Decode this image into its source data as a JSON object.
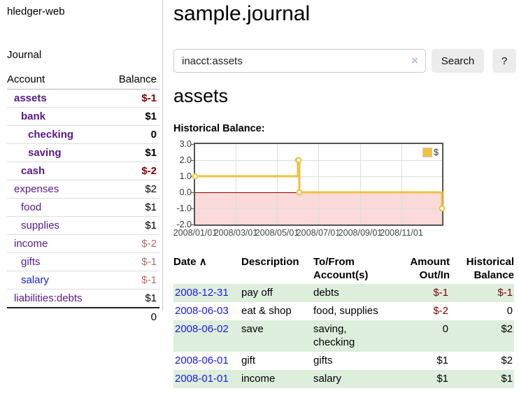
{
  "colors": {
    "link_purple": "#551a8b",
    "link_blue": "#1a1ae6",
    "negative": "#800000",
    "negative_muted": "#b36b6b",
    "row_stripe_green": "#ddeedd",
    "chart_line_gold": "#edc240",
    "chart_negative_fill": "#fbdada",
    "chart_zero_line": "#8b0000",
    "chart_border": "#545454"
  },
  "sidebar": {
    "brand": "hledger-web",
    "journal_label": "Journal",
    "accounts_table": {
      "headers": {
        "account": "Account",
        "balance": "Balance"
      },
      "rows": [
        {
          "account": "assets",
          "level": 1,
          "bold": true,
          "link": "purple",
          "balance": "$-1",
          "balance_style": "negative"
        },
        {
          "account": "bank",
          "level": 2,
          "bold": true,
          "link": "purple",
          "balance": "$1",
          "balance_style": "normal"
        },
        {
          "account": "checking",
          "level": 3,
          "bold": true,
          "link": "purple",
          "balance": "0",
          "balance_style": "normal"
        },
        {
          "account": "saving",
          "level": 3,
          "bold": true,
          "link": "purple",
          "balance": "$1",
          "balance_style": "normal"
        },
        {
          "account": "cash",
          "level": 2,
          "bold": true,
          "link": "purple",
          "balance": "$-2",
          "balance_style": "negative"
        },
        {
          "account": "expenses",
          "level": 1,
          "bold": false,
          "link": "purple",
          "balance": "$2",
          "balance_style": "normal"
        },
        {
          "account": "food",
          "level": 2,
          "bold": false,
          "link": "purple",
          "balance": "$1",
          "balance_style": "normal"
        },
        {
          "account": "supplies",
          "level": 2,
          "bold": false,
          "link": "purple",
          "balance": "$1",
          "balance_style": "normal"
        },
        {
          "account": "income",
          "level": 1,
          "bold": false,
          "link": "purple",
          "balance": "$-2",
          "balance_style": "negative_muted"
        },
        {
          "account": "gifts",
          "level": 2,
          "bold": false,
          "link": "purple",
          "balance": "$-1",
          "balance_style": "negative_muted"
        },
        {
          "account": "salary",
          "level": 2,
          "bold": false,
          "link": "blue",
          "balance": "$-1",
          "balance_style": "negative_muted"
        },
        {
          "account": "liabilities:debts",
          "level": 1,
          "bold": false,
          "link": "purple",
          "balance": "$1",
          "balance_style": "normal"
        }
      ],
      "total": "0"
    }
  },
  "main": {
    "title": "sample.journal",
    "search": {
      "value": "inacct:assets",
      "clear_icon": "×",
      "button_label": "Search",
      "help_label": "?"
    },
    "account_heading": "assets",
    "chart_label": "Historical Balance:"
  },
  "chart_data": {
    "type": "line",
    "step": true,
    "title": "Historical Balance",
    "legend": [
      {
        "label": "$",
        "color": "#edc240"
      }
    ],
    "series": [
      {
        "name": "$",
        "points": [
          {
            "x": "2008-01-01",
            "y": 1
          },
          {
            "x": "2008-06-01",
            "y": 2
          },
          {
            "x": "2008-06-02",
            "y": 2
          },
          {
            "x": "2008-06-03",
            "y": 0
          },
          {
            "x": "2008-12-31",
            "y": -1
          }
        ]
      }
    ],
    "x_ticks": [
      "2008/01/01",
      "2008/03/01",
      "2008/05/01",
      "2008/07/01",
      "2008/09/01",
      "2008/11/01"
    ],
    "y_ticks": [
      3.0,
      2.0,
      1.0,
      0.0,
      -1.0,
      -2.0
    ],
    "xlim": [
      "2008-01-01",
      "2008-12-31"
    ],
    "ylim": [
      -2,
      3
    ],
    "grid": true,
    "legend_position": "top-right",
    "negative_region_shaded": true
  },
  "register": {
    "headers": {
      "date": "Date",
      "sort_icon": "∧",
      "description": "Description",
      "accounts": "To/From Account(s)",
      "amount": "Amount Out/In",
      "balance": "Historical Balance"
    },
    "rows": [
      {
        "date": "2008-12-31",
        "description": "pay off",
        "accounts": "debts",
        "amount": "$-1",
        "amount_negative": true,
        "balance": "$-1",
        "balance_negative": true,
        "shaded": true
      },
      {
        "date": "2008-06-03",
        "description": "eat & shop",
        "accounts": "food, supplies",
        "amount": "$-2",
        "amount_negative": true,
        "balance": "0",
        "balance_negative": false,
        "shaded": false
      },
      {
        "date": "2008-06-02",
        "description": "save",
        "accounts": "saving, checking",
        "amount": "0",
        "amount_negative": false,
        "balance": "$2",
        "balance_negative": false,
        "shaded": true
      },
      {
        "date": "2008-06-01",
        "description": "gift",
        "accounts": "gifts",
        "amount": "$1",
        "amount_negative": false,
        "balance": "$2",
        "balance_negative": false,
        "shaded": false
      },
      {
        "date": "2008-01-01",
        "description": "income",
        "accounts": "salary",
        "amount": "$1",
        "amount_negative": false,
        "balance": "$1",
        "balance_negative": false,
        "shaded": true
      }
    ]
  }
}
